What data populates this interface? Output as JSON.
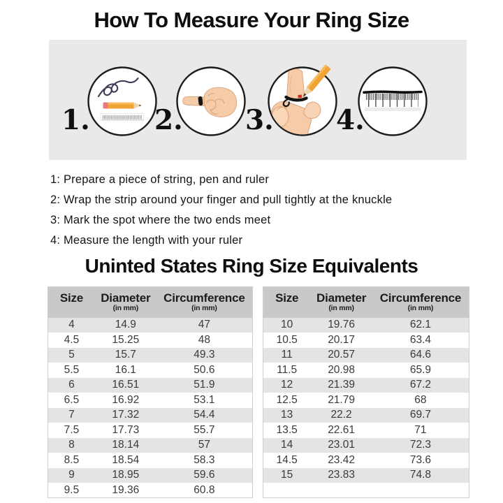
{
  "colors": {
    "banner_bg": "#e9e9e9",
    "table_header_bg": "#c9c9c9",
    "table_row_alt_bg": "#e4e4e4",
    "table_border": "#cfcfcf",
    "pencil_orange": "#f0a233",
    "pencil_eraser_pink": "#e87a7a",
    "string_dark": "#3c3c5a",
    "skin": "#f6cba8",
    "mark_red": "#cf2b2b"
  },
  "header": {
    "title": "How To Measure Your Ring Size"
  },
  "steps": {
    "items": [
      {
        "num": "1.",
        "icon": "string-pen-ruler"
      },
      {
        "num": "2.",
        "icon": "string-wrapped-on-finger"
      },
      {
        "num": "3.",
        "icon": "marking-string-with-pencil"
      },
      {
        "num": "4.",
        "icon": "measuring-string-with-ruler"
      }
    ]
  },
  "instructions": {
    "lines": [
      "1: Prepare a piece of string, pen and ruler",
      "2: Wrap the strip around your finger and pull tightly at the knuckle",
      "3: Mark the spot where the two ends meet",
      "4: Measure the length with your ruler"
    ]
  },
  "size_chart": {
    "title": "Uninted States Ring Size Equivalents",
    "columns": {
      "size": "Size",
      "diameter": "Diameter",
      "circumference": "Circumference",
      "unit": "(in mm)"
    },
    "left_table": {
      "rows": [
        [
          "4",
          "14.9",
          "47"
        ],
        [
          "4.5",
          "15.25",
          "48"
        ],
        [
          "5",
          "15.7",
          "49.3"
        ],
        [
          "5.5",
          "16.1",
          "50.6"
        ],
        [
          "6",
          "16.51",
          "51.9"
        ],
        [
          "6.5",
          "16.92",
          "53.1"
        ],
        [
          "7",
          "17.32",
          "54.4"
        ],
        [
          "7.5",
          "17.73",
          "55.7"
        ],
        [
          "8",
          "18.14",
          "57"
        ],
        [
          "8.5",
          "18.54",
          "58.3"
        ],
        [
          "9",
          "18.95",
          "59.6"
        ],
        [
          "9.5",
          "19.36",
          "60.8"
        ]
      ]
    },
    "right_table": {
      "rows": [
        [
          "10",
          "19.76",
          "62.1"
        ],
        [
          "10.5",
          "20.17",
          "63.4"
        ],
        [
          "11",
          "20.57",
          "64.6"
        ],
        [
          "11.5",
          "20.98",
          "65.9"
        ],
        [
          "12",
          "21.39",
          "67.2"
        ],
        [
          "12.5",
          "21.79",
          "68"
        ],
        [
          "13",
          "22.2",
          "69.7"
        ],
        [
          "13.5",
          "22.61",
          "71"
        ],
        [
          "14",
          "23.01",
          "72.3"
        ],
        [
          "14.5",
          "23.42",
          "73.6"
        ],
        [
          "15",
          "23.83",
          "74.8"
        ]
      ]
    }
  }
}
